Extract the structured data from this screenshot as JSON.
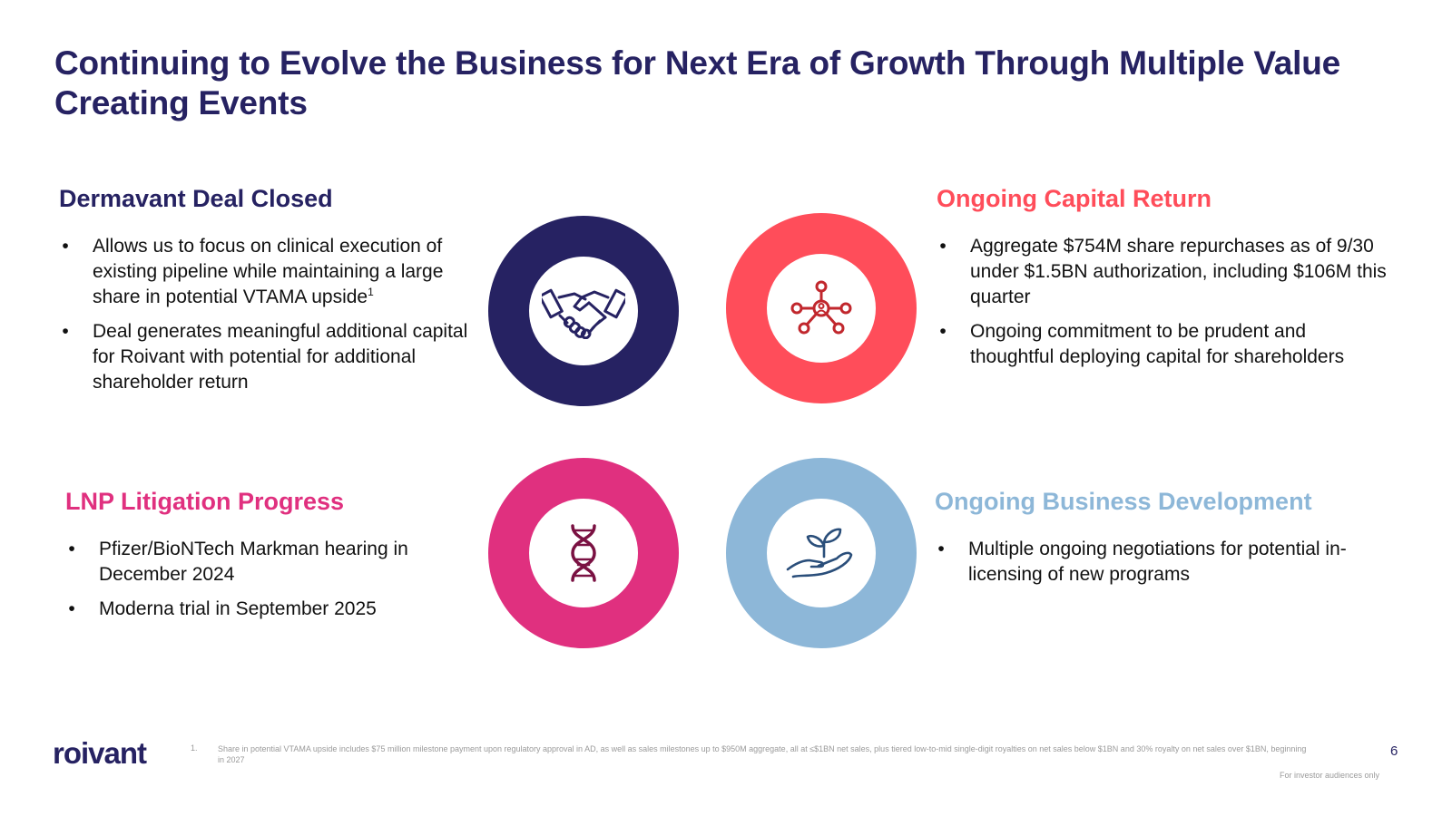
{
  "title": "Continuing to Evolve the Business for Next Era of Growth Through Multiple Value Creating Events",
  "colors": {
    "navy": "#262262",
    "coral": "#ff4d5a",
    "magenta": "#e0307f",
    "lightblue": "#8db7d8",
    "handshake_icon": "#262262",
    "network_icon": "#c1272d",
    "dna_icon": "#7a1142",
    "plant_icon": "#2a4e7a"
  },
  "sections": {
    "dermavant": {
      "heading": "Dermavant Deal Closed",
      "bullets": [
        {
          "text": "Allows us to focus on clinical execution of existing pipeline while maintaining a large share in potential VTAMA upside",
          "sup": "1"
        },
        {
          "text": "Deal generates meaningful additional capital for Roivant with potential for additional shareholder return"
        }
      ]
    },
    "capital": {
      "heading": "Ongoing Capital Return",
      "bullets": [
        {
          "text": "Aggregate $754M share repurchases as of 9/30 under $1.5BN authorization, including $106M this quarter"
        },
        {
          "text": "Ongoing commitment to be prudent and thoughtful deploying capital for shareholders"
        }
      ]
    },
    "lnp": {
      "heading": "LNP Litigation Progress",
      "bullets": [
        {
          "text": "Pfizer/BioNTech Markman hearing in December 2024"
        },
        {
          "text": "Moderna trial in September 2025"
        }
      ]
    },
    "bd": {
      "heading": "Ongoing Business Development",
      "bullets": [
        {
          "text": "Multiple ongoing negotiations for potential in-licensing of new programs"
        }
      ]
    }
  },
  "icons": [
    "handshake-icon",
    "network-icon",
    "dna-icon",
    "plant-in-hand-icon"
  ],
  "footer": {
    "logo": "roivant",
    "footnote_number": "1.",
    "footnote_text": "Share in potential VTAMA upside includes $75 million milestone payment upon regulatory approval in AD, as well as sales milestones up to $950M aggregate, all at ≤$1BN net sales, plus tiered low-to-mid single-digit royalties on net sales below $1BN and 30% royalty on net sales over $1BN, beginning in 2027",
    "page_number": "6",
    "audience": "For investor audiences only"
  }
}
